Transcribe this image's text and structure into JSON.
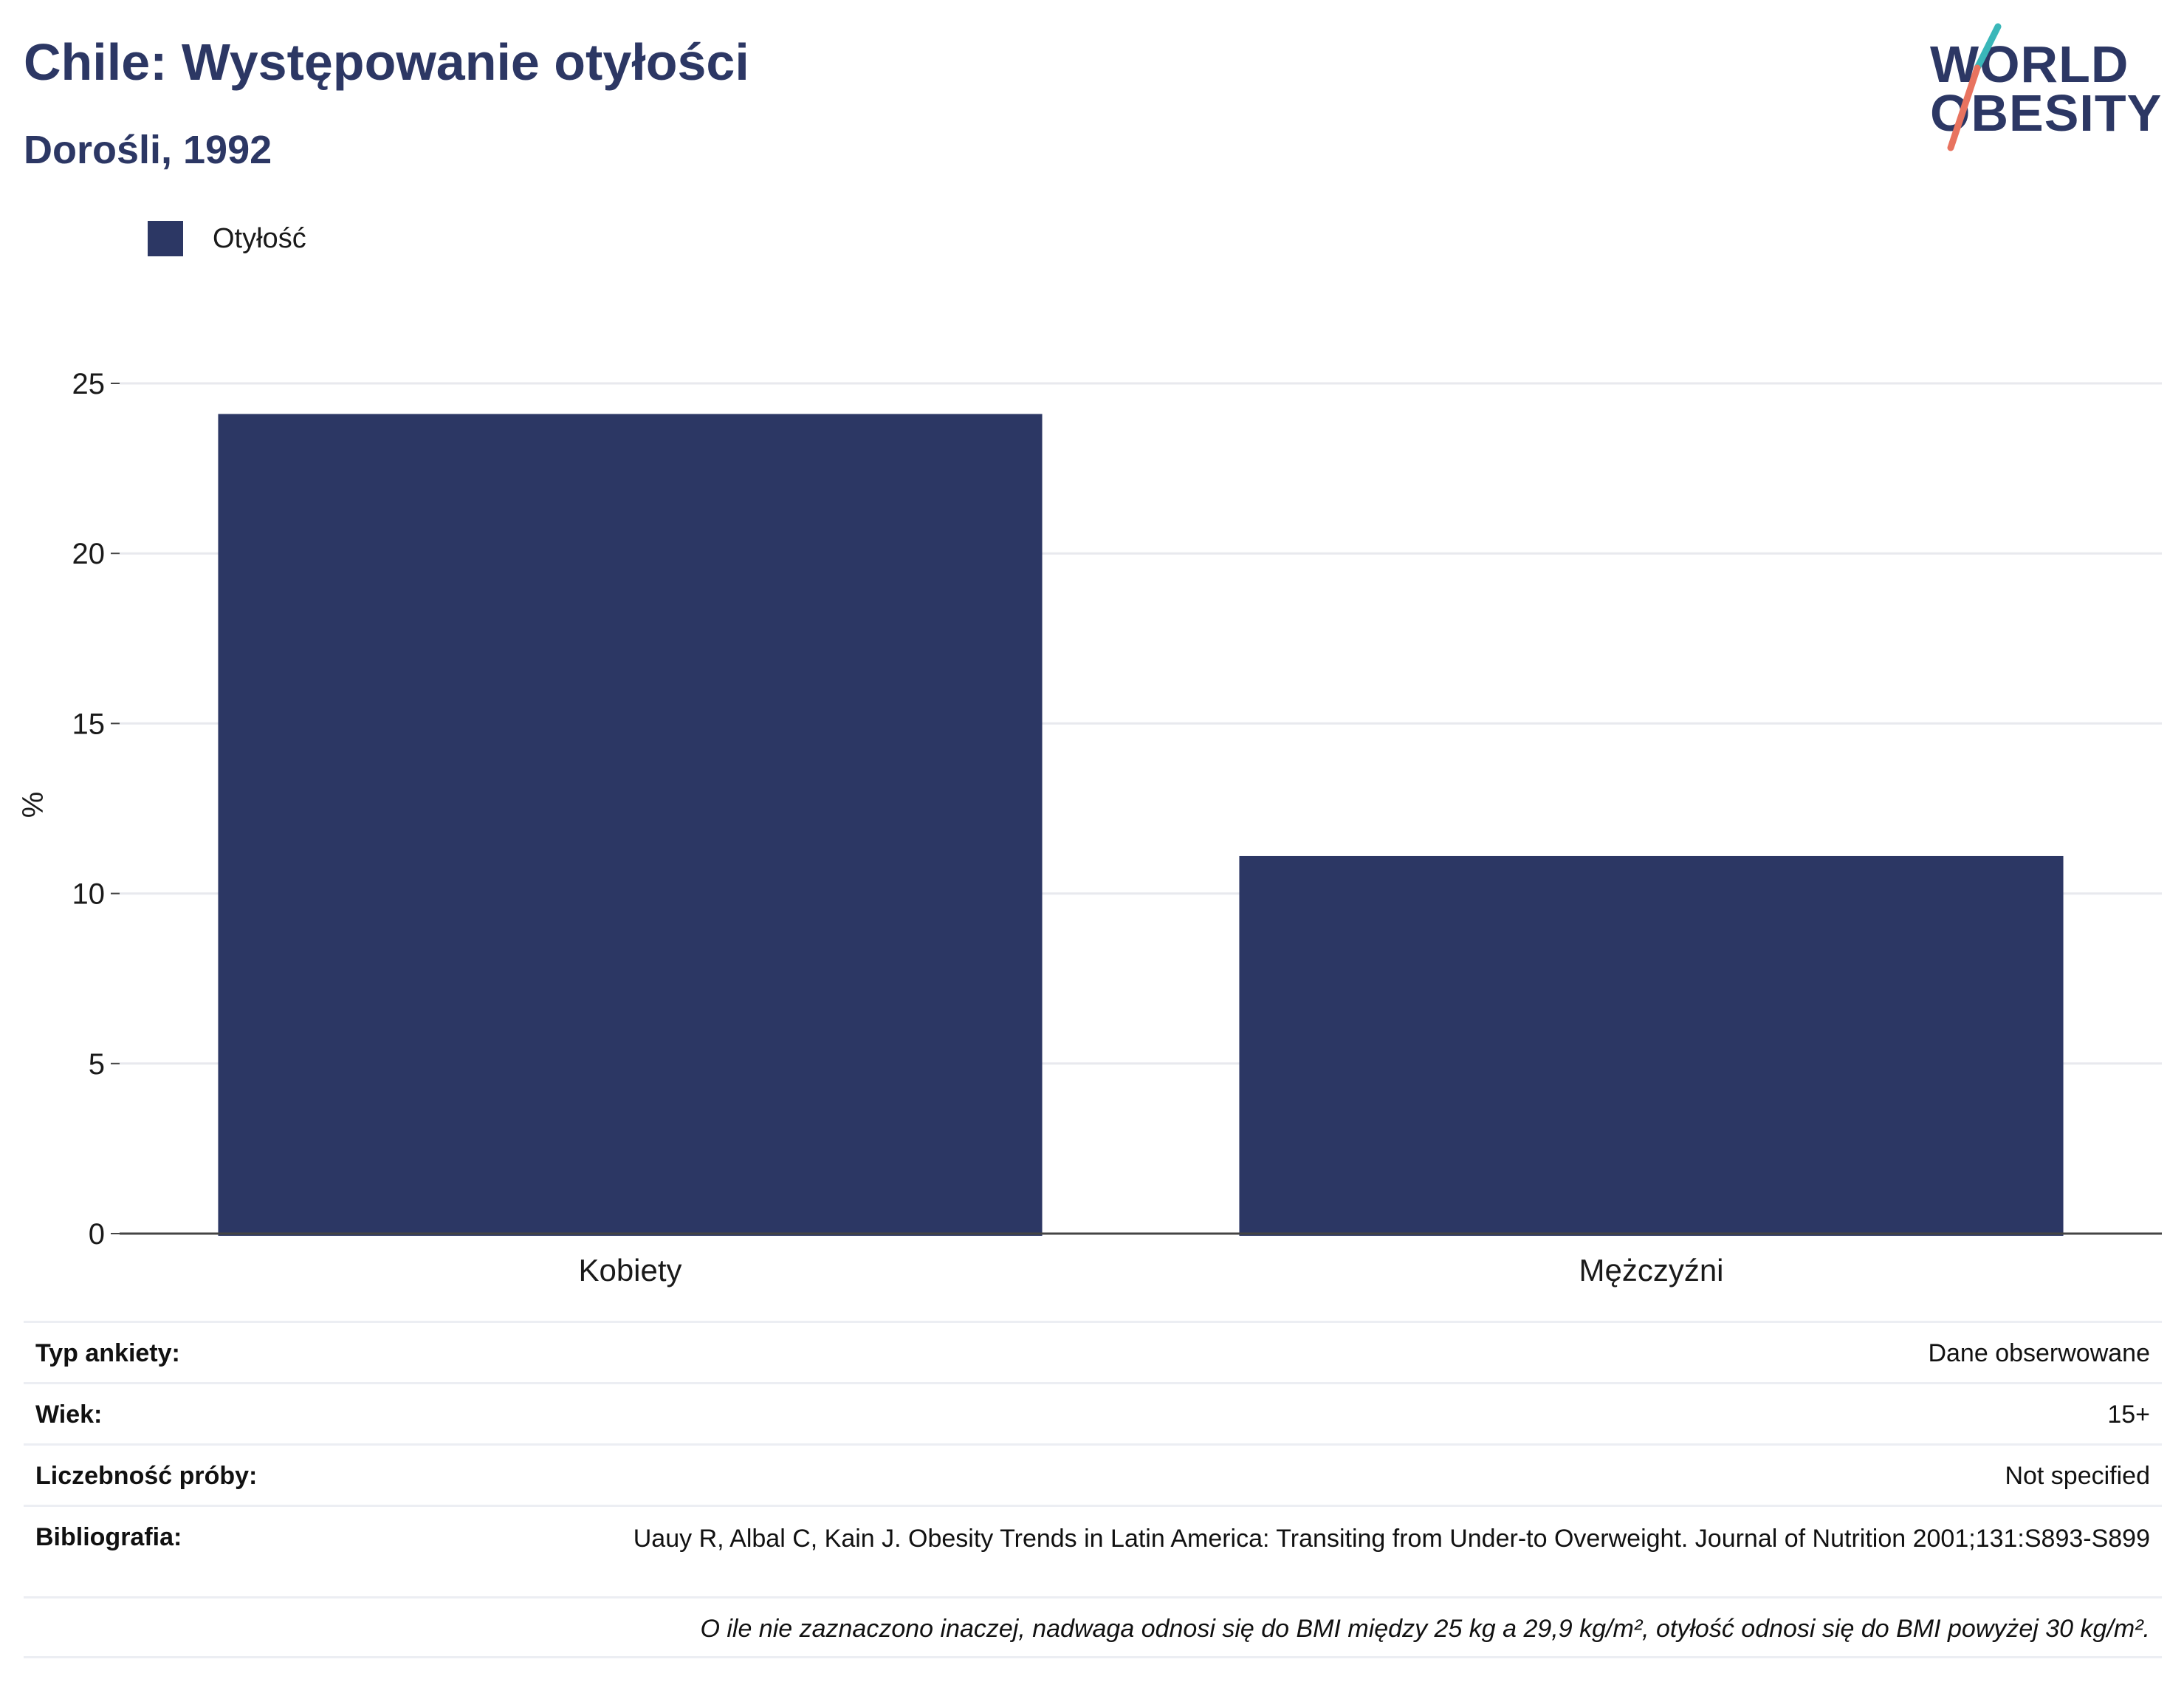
{
  "header": {
    "title": "Chile: Występowanie otyłości",
    "subtitle": "Dorośli, 1992"
  },
  "logo": {
    "line1": "WORLD",
    "line2": "OBESITY",
    "colors": {
      "navy": "#2c3764",
      "teal": "#3ab7b9",
      "coral": "#e8735f"
    }
  },
  "legend": [
    {
      "label": "Otyłość",
      "color": "#2c3764"
    }
  ],
  "chart_data": {
    "type": "bar",
    "categories": [
      "Kobiety",
      "Mężczyźni"
    ],
    "series": [
      {
        "name": "Otyłość",
        "values": [
          24.1,
          11.1
        ],
        "color": "#2c3764"
      }
    ],
    "ylabel": "%",
    "ylim": [
      0,
      25
    ],
    "yticks": [
      0,
      5,
      10,
      15,
      20,
      25
    ],
    "grid": true,
    "legend_position": "top-left"
  },
  "meta": {
    "survey_type_label": "Typ ankiety:",
    "survey_type_value": "Dane obserwowane",
    "age_label": "Wiek:",
    "age_value": "15+",
    "sample_size_label": "Liczebność próby:",
    "sample_size_value": "Not specified",
    "bibliography_label": "Bibliografia:",
    "bibliography_value": "Uauy R, Albal C, Kain J. Obesity Trends in Latin America: Transiting from Under-to Overweight. Journal of Nutrition 2001;131:S893-S899",
    "note": "O ile nie zaznaczono inaczej, nadwaga odnosi się do BMI między 25 kg a 29,9 kg/m², otyłość odnosi się do BMI powyżej 30 kg/m²."
  }
}
